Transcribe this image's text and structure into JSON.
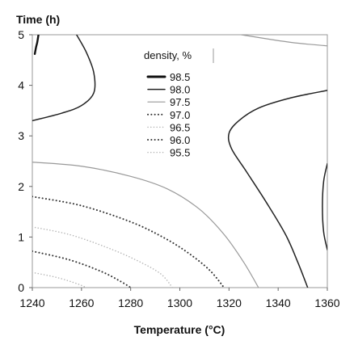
{
  "chart_data": {
    "type": "line",
    "xlabel": "Temperature (°C)",
    "ylabel": "Time (h)",
    "xlim": [
      1240,
      1360
    ],
    "ylim": [
      0,
      5
    ],
    "xticks": [
      1240,
      1260,
      1280,
      1300,
      1320,
      1340,
      1360
    ],
    "yticks": [
      0,
      1,
      2,
      3,
      4,
      5
    ],
    "grid": false,
    "legend": {
      "title": "density, %",
      "placement": "top-center"
    },
    "series": [
      {
        "name": "98.5",
        "style": "solid-thick",
        "segments": [
          [
            [
              1241,
              4.62
            ],
            [
              1241.5,
              4.75
            ],
            [
              1242,
              4.85
            ],
            [
              1242.5,
              5.0
            ]
          ]
        ]
      },
      {
        "name": "98.0",
        "style": "solid",
        "segments": [
          [
            [
              1240,
              3.3
            ],
            [
              1252,
              3.45
            ],
            [
              1260,
              3.6
            ],
            [
              1265,
              3.85
            ],
            [
              1265,
              4.25
            ],
            [
              1262,
              4.65
            ],
            [
              1258,
              5.0
            ]
          ],
          [
            [
              1360,
              3.9
            ],
            [
              1345,
              3.75
            ],
            [
              1332,
              3.55
            ],
            [
              1324,
              3.3
            ],
            [
              1320,
              3.05
            ],
            [
              1321,
              2.75
            ],
            [
              1327,
              2.3
            ],
            [
              1335,
              1.7
            ],
            [
              1343,
              1.05
            ],
            [
              1348,
              0.5
            ],
            [
              1352,
              0.0
            ]
          ],
          [
            [
              1360,
              2.45
            ],
            [
              1358.5,
              2.1
            ],
            [
              1358,
              1.6
            ],
            [
              1358.5,
              1.1
            ],
            [
              1360,
              0.75
            ]
          ]
        ]
      },
      {
        "name": "97.5",
        "style": "solid-gray",
        "segments": [
          [
            [
              1240,
              2.48
            ],
            [
              1260,
              2.4
            ],
            [
              1280,
              2.2
            ],
            [
              1295,
              1.95
            ],
            [
              1308,
              1.55
            ],
            [
              1318,
              1.05
            ],
            [
              1326,
              0.5
            ],
            [
              1332,
              0.0
            ]
          ],
          [
            [
              1325,
              5.0
            ],
            [
              1345,
              4.85
            ],
            [
              1360,
              4.78
            ]
          ]
        ]
      },
      {
        "name": "97.0",
        "style": "dotted-thick",
        "segments": [
          [
            [
              1240,
              1.8
            ],
            [
              1260,
              1.62
            ],
            [
              1280,
              1.3
            ],
            [
              1293,
              1.0
            ],
            [
              1303,
              0.7
            ],
            [
              1312,
              0.35
            ],
            [
              1318,
              0.0
            ]
          ]
        ]
      },
      {
        "name": "96.5",
        "style": "dotted-light",
        "segments": [
          [
            [
              1240,
              1.2
            ],
            [
              1255,
              1.05
            ],
            [
              1270,
              0.8
            ],
            [
              1282,
              0.55
            ],
            [
              1292,
              0.28
            ],
            [
              1297,
              0.0
            ]
          ]
        ]
      },
      {
        "name": "96.0",
        "style": "dotted-thick",
        "segments": [
          [
            [
              1240,
              0.72
            ],
            [
              1255,
              0.55
            ],
            [
              1268,
              0.32
            ],
            [
              1276,
              0.12
            ],
            [
              1280,
              0.0
            ]
          ]
        ]
      },
      {
        "name": "95.5",
        "style": "dotted-light",
        "segments": [
          [
            [
              1240,
              0.3
            ],
            [
              1250,
              0.2
            ],
            [
              1258,
              0.08
            ],
            [
              1262,
              0.0
            ]
          ]
        ]
      }
    ]
  }
}
